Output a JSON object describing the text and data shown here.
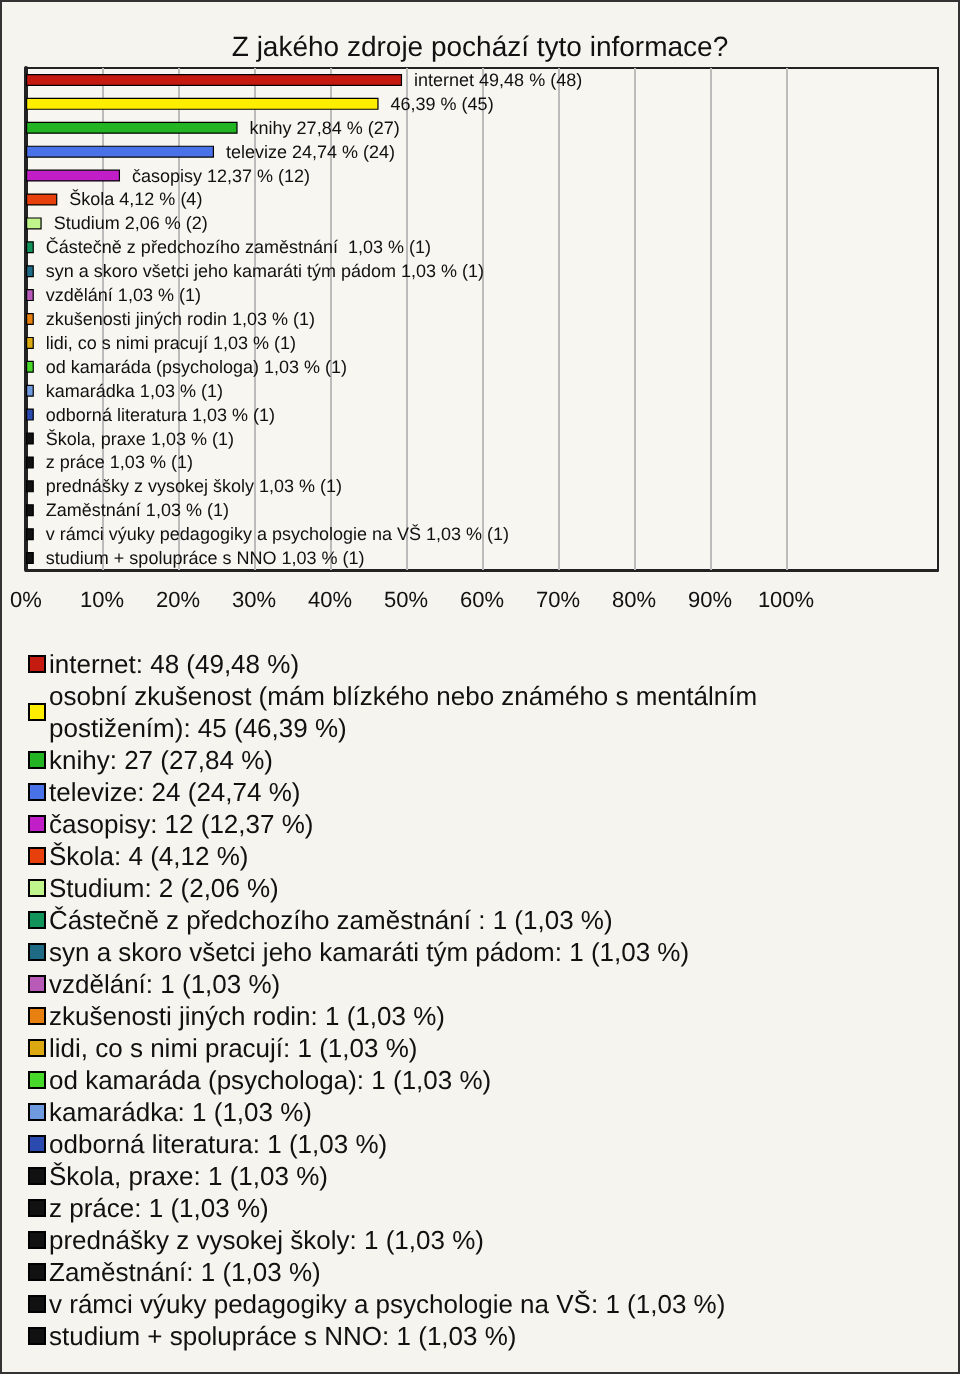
{
  "chart_data": {
    "type": "bar",
    "orientation": "horizontal",
    "stacked": true,
    "title": "Z jakého zdroje pochází tyto informace?",
    "categories": [
      null,
      null,
      null,
      null,
      null,
      null,
      null,
      null,
      null,
      null,
      null,
      null,
      null,
      null,
      null,
      null,
      null,
      null,
      null,
      null,
      null
    ],
    "series": [
      {
        "name": "internet: 48 (49,48 %)",
        "color": "#c41a10",
        "values": [
          49.48,
          null,
          null,
          null,
          null,
          null,
          null,
          null,
          null,
          null,
          null,
          null,
          null,
          null,
          null,
          null,
          null,
          null,
          null,
          null,
          null
        ],
        "value_labels": [
          "internet 49,48 % (48)",
          null,
          null,
          null,
          null,
          null,
          null,
          null,
          null,
          null,
          null,
          null,
          null,
          null,
          null,
          null,
          null,
          null,
          null,
          null,
          null
        ]
      },
      {
        "name": "osobní zkušenost (mám blízkého nebo známého s mentálním postižením): 45 (46,39 %)",
        "color": "#ffee00",
        "values": [
          null,
          46.39,
          null,
          null,
          null,
          null,
          null,
          null,
          null,
          null,
          null,
          null,
          null,
          null,
          null,
          null,
          null,
          null,
          null,
          null,
          null
        ],
        "value_labels": [
          null,
          "46,39 % (45)",
          null,
          null,
          null,
          null,
          null,
          null,
          null,
          null,
          null,
          null,
          null,
          null,
          null,
          null,
          null,
          null,
          null,
          null,
          null
        ]
      },
      {
        "name": "knihy: 27 (27,84 %)",
        "color": "#22b422",
        "values": [
          null,
          null,
          27.84,
          null,
          null,
          null,
          null,
          null,
          null,
          null,
          null,
          null,
          null,
          null,
          null,
          null,
          null,
          null,
          null,
          null,
          null
        ],
        "value_labels": [
          null,
          null,
          "knihy 27,84 % (27)",
          null,
          null,
          null,
          null,
          null,
          null,
          null,
          null,
          null,
          null,
          null,
          null,
          null,
          null,
          null,
          null,
          null,
          null
        ]
      },
      {
        "name": "televize: 24 (24,74 %)",
        "color": "#4a72e8",
        "values": [
          null,
          null,
          null,
          24.74,
          null,
          null,
          null,
          null,
          null,
          null,
          null,
          null,
          null,
          null,
          null,
          null,
          null,
          null,
          null,
          null,
          null
        ],
        "value_labels": [
          null,
          null,
          null,
          "televize 24,74 % (24)",
          null,
          null,
          null,
          null,
          null,
          null,
          null,
          null,
          null,
          null,
          null,
          null,
          null,
          null,
          null,
          null,
          null
        ]
      },
      {
        "name": "časopisy: 12 (12,37 %)",
        "color": "#c21ec8",
        "values": [
          null,
          null,
          null,
          null,
          12.37,
          null,
          null,
          null,
          null,
          null,
          null,
          null,
          null,
          null,
          null,
          null,
          null,
          null,
          null,
          null,
          null
        ],
        "value_labels": [
          null,
          null,
          null,
          null,
          "časopisy 12,37 % (12)",
          null,
          null,
          null,
          null,
          null,
          null,
          null,
          null,
          null,
          null,
          null,
          null,
          null,
          null,
          null,
          null
        ]
      },
      {
        "name": "Škola: 4 (4,12 %)",
        "color": "#e8400c",
        "values": [
          null,
          null,
          null,
          null,
          null,
          4.12,
          null,
          null,
          null,
          null,
          null,
          null,
          null,
          null,
          null,
          null,
          null,
          null,
          null,
          null,
          null
        ],
        "value_labels": [
          null,
          null,
          null,
          null,
          null,
          "Škola 4,12 % (4)",
          null,
          null,
          null,
          null,
          null,
          null,
          null,
          null,
          null,
          null,
          null,
          null,
          null,
          null,
          null
        ]
      },
      {
        "name": "Studium: 2 (2,06 %)",
        "color": "#bff58a",
        "values": [
          null,
          null,
          null,
          null,
          null,
          null,
          2.06,
          null,
          null,
          null,
          null,
          null,
          null,
          null,
          null,
          null,
          null,
          null,
          null,
          null,
          null
        ],
        "value_labels": [
          null,
          null,
          null,
          null,
          null,
          null,
          "Studium 2,06 % (2)",
          null,
          null,
          null,
          null,
          null,
          null,
          null,
          null,
          null,
          null,
          null,
          null,
          null,
          null
        ]
      },
      {
        "name": "Částečně z předchozího zaměstnání : 1 (1,03 %)",
        "color": "#12935a",
        "values": [
          null,
          null,
          null,
          null,
          null,
          null,
          null,
          1.03,
          null,
          null,
          null,
          null,
          null,
          null,
          null,
          null,
          null,
          null,
          null,
          null,
          null
        ],
        "value_labels": [
          null,
          null,
          null,
          null,
          null,
          null,
          null,
          "Částečně z předchozího zaměstnání  1,03 % (1)",
          null,
          null,
          null,
          null,
          null,
          null,
          null,
          null,
          null,
          null,
          null,
          null,
          null
        ]
      },
      {
        "name": "syn a skoro všetci jeho kamaráti tým pádom: 1 (1,03 %)",
        "color": "#1f6b86",
        "values": [
          null,
          null,
          null,
          null,
          null,
          null,
          null,
          null,
          1.03,
          null,
          null,
          null,
          null,
          null,
          null,
          null,
          null,
          null,
          null,
          null,
          null
        ],
        "value_labels": [
          null,
          null,
          null,
          null,
          null,
          null,
          null,
          null,
          "syn a skoro všetci jeho kamaráti tým pádom 1,03 % (1)",
          null,
          null,
          null,
          null,
          null,
          null,
          null,
          null,
          null,
          null,
          null,
          null
        ]
      },
      {
        "name": "vzdělání: 1 (1,03 %)",
        "color": "#b85ab8",
        "values": [
          null,
          null,
          null,
          null,
          null,
          null,
          null,
          null,
          null,
          1.03,
          null,
          null,
          null,
          null,
          null,
          null,
          null,
          null,
          null,
          null,
          null
        ],
        "value_labels": [
          null,
          null,
          null,
          null,
          null,
          null,
          null,
          null,
          null,
          "vzdělání 1,03 % (1)",
          null,
          null,
          null,
          null,
          null,
          null,
          null,
          null,
          null,
          null,
          null
        ]
      },
      {
        "name": "zkušenosti jiných rodin: 1 (1,03 %)",
        "color": "#e8800f",
        "values": [
          null,
          null,
          null,
          null,
          null,
          null,
          null,
          null,
          null,
          null,
          1.03,
          null,
          null,
          null,
          null,
          null,
          null,
          null,
          null,
          null,
          null
        ],
        "value_labels": [
          null,
          null,
          null,
          null,
          null,
          null,
          null,
          null,
          null,
          null,
          "zkušenosti jiných rodin 1,03 % (1)",
          null,
          null,
          null,
          null,
          null,
          null,
          null,
          null,
          null,
          null
        ]
      },
      {
        "name": "lidi, co s nimi pracují: 1 (1,03 %)",
        "color": "#dcaa10",
        "values": [
          null,
          null,
          null,
          null,
          null,
          null,
          null,
          null,
          null,
          null,
          null,
          1.03,
          null,
          null,
          null,
          null,
          null,
          null,
          null,
          null,
          null
        ],
        "value_labels": [
          null,
          null,
          null,
          null,
          null,
          null,
          null,
          null,
          null,
          null,
          null,
          "lidi, co s nimi pracují 1,03 % (1)",
          null,
          null,
          null,
          null,
          null,
          null,
          null,
          null,
          null
        ]
      },
      {
        "name": "od kamaráda (psychologa): 1 (1,03 %)",
        "color": "#48d82a",
        "values": [
          null,
          null,
          null,
          null,
          null,
          null,
          null,
          null,
          null,
          null,
          null,
          null,
          1.03,
          null,
          null,
          null,
          null,
          null,
          null,
          null,
          null
        ],
        "value_labels": [
          null,
          null,
          null,
          null,
          null,
          null,
          null,
          null,
          null,
          null,
          null,
          null,
          "od kamaráda (psychologa) 1,03 % (1)",
          null,
          null,
          null,
          null,
          null,
          null,
          null,
          null
        ]
      },
      {
        "name": "kamarádka: 1 (1,03 %)",
        "color": "#6f9ae0",
        "values": [
          null,
          null,
          null,
          null,
          null,
          null,
          null,
          null,
          null,
          null,
          null,
          null,
          null,
          1.03,
          null,
          null,
          null,
          null,
          null,
          null,
          null
        ],
        "value_labels": [
          null,
          null,
          null,
          null,
          null,
          null,
          null,
          null,
          null,
          null,
          null,
          null,
          null,
          "kamarádka 1,03 % (1)",
          null,
          null,
          null,
          null,
          null,
          null,
          null
        ]
      },
      {
        "name": "odborná literatura: 1 (1,03 %)",
        "color": "#2a4ab0",
        "values": [
          null,
          null,
          null,
          null,
          null,
          null,
          null,
          null,
          null,
          null,
          null,
          null,
          null,
          null,
          1.03,
          null,
          null,
          null,
          null,
          null,
          null
        ],
        "value_labels": [
          null,
          null,
          null,
          null,
          null,
          null,
          null,
          null,
          null,
          null,
          null,
          null,
          null,
          null,
          "odborná literatura 1,03 % (1)",
          null,
          null,
          null,
          null,
          null,
          null
        ]
      },
      {
        "name": "Škola, praxe: 1 (1,03 %)",
        "color": "#111111",
        "values": [
          null,
          null,
          null,
          null,
          null,
          null,
          null,
          null,
          null,
          null,
          null,
          null,
          null,
          null,
          null,
          1.03,
          null,
          null,
          null,
          null,
          null
        ],
        "value_labels": [
          null,
          null,
          null,
          null,
          null,
          null,
          null,
          null,
          null,
          null,
          null,
          null,
          null,
          null,
          null,
          "Škola, praxe 1,03 % (1)",
          null,
          null,
          null,
          null,
          null
        ]
      },
      {
        "name": "z práce: 1 (1,03 %)",
        "color": "#111111",
        "values": [
          null,
          null,
          null,
          null,
          null,
          null,
          null,
          null,
          null,
          null,
          null,
          null,
          null,
          null,
          null,
          null,
          1.03,
          null,
          null,
          null,
          null
        ],
        "value_labels": [
          null,
          null,
          null,
          null,
          null,
          null,
          null,
          null,
          null,
          null,
          null,
          null,
          null,
          null,
          null,
          null,
          "z práce 1,03 % (1)",
          null,
          null,
          null,
          null
        ]
      },
      {
        "name": "prednášky z vysokej školy: 1 (1,03 %)",
        "color": "#111111",
        "values": [
          null,
          null,
          null,
          null,
          null,
          null,
          null,
          null,
          null,
          null,
          null,
          null,
          null,
          null,
          null,
          null,
          null,
          1.03,
          null,
          null,
          null
        ],
        "value_labels": [
          null,
          null,
          null,
          null,
          null,
          null,
          null,
          null,
          null,
          null,
          null,
          null,
          null,
          null,
          null,
          null,
          null,
          "prednášky z vysokej školy 1,03 % (1)",
          null,
          null,
          null
        ]
      },
      {
        "name": "Zaměstnání: 1 (1,03 %)",
        "color": "#111111",
        "values": [
          null,
          null,
          null,
          null,
          null,
          null,
          null,
          null,
          null,
          null,
          null,
          null,
          null,
          null,
          null,
          null,
          null,
          null,
          1.03,
          null,
          null
        ],
        "value_labels": [
          null,
          null,
          null,
          null,
          null,
          null,
          null,
          null,
          null,
          null,
          null,
          null,
          null,
          null,
          null,
          null,
          null,
          null,
          "Zaměstnání 1,03 % (1)",
          null,
          null
        ]
      },
      {
        "name": "v rámci výuky pedagogiky a psychologie na VŠ: 1 (1,03 %)",
        "color": "#111111",
        "values": [
          null,
          null,
          null,
          null,
          null,
          null,
          null,
          null,
          null,
          null,
          null,
          null,
          null,
          null,
          null,
          null,
          null,
          null,
          null,
          1.03,
          null
        ],
        "value_labels": [
          null,
          null,
          null,
          null,
          null,
          null,
          null,
          null,
          null,
          null,
          null,
          null,
          null,
          null,
          null,
          null,
          null,
          null,
          null,
          "v rámci výuky pedagogiky a psychologie na VŠ 1,03 % (1)",
          null
        ]
      },
      {
        "name": "studium + spolupráce s NNO: 1 (1,03 %)",
        "color": "#111111",
        "values": [
          null,
          null,
          null,
          null,
          null,
          null,
          null,
          null,
          null,
          null,
          null,
          null,
          null,
          null,
          null,
          null,
          null,
          null,
          null,
          null,
          1.03
        ],
        "value_labels": [
          null,
          null,
          null,
          null,
          null,
          null,
          null,
          null,
          null,
          null,
          null,
          null,
          null,
          null,
          null,
          null,
          null,
          null,
          null,
          null,
          "studium + spolupráce s NNO 1,03 % (1)"
        ]
      }
    ],
    "xlim": [
      0,
      120
    ],
    "xticks": [
      {
        "value": 0,
        "label": "0%"
      },
      {
        "value": 10,
        "label": "10%"
      },
      {
        "value": 20,
        "label": "20%"
      },
      {
        "value": 30,
        "label": "30%"
      },
      {
        "value": 40,
        "label": "40%"
      },
      {
        "value": 50,
        "label": "50%"
      },
      {
        "value": 60,
        "label": "60%"
      },
      {
        "value": 70,
        "label": "70%"
      },
      {
        "value": 80,
        "label": "80%"
      },
      {
        "value": 90,
        "label": "90%"
      },
      {
        "value": 100,
        "label": "100%"
      }
    ],
    "grid": "x",
    "legend": "bottom",
    "tick_labels": "x"
  }
}
